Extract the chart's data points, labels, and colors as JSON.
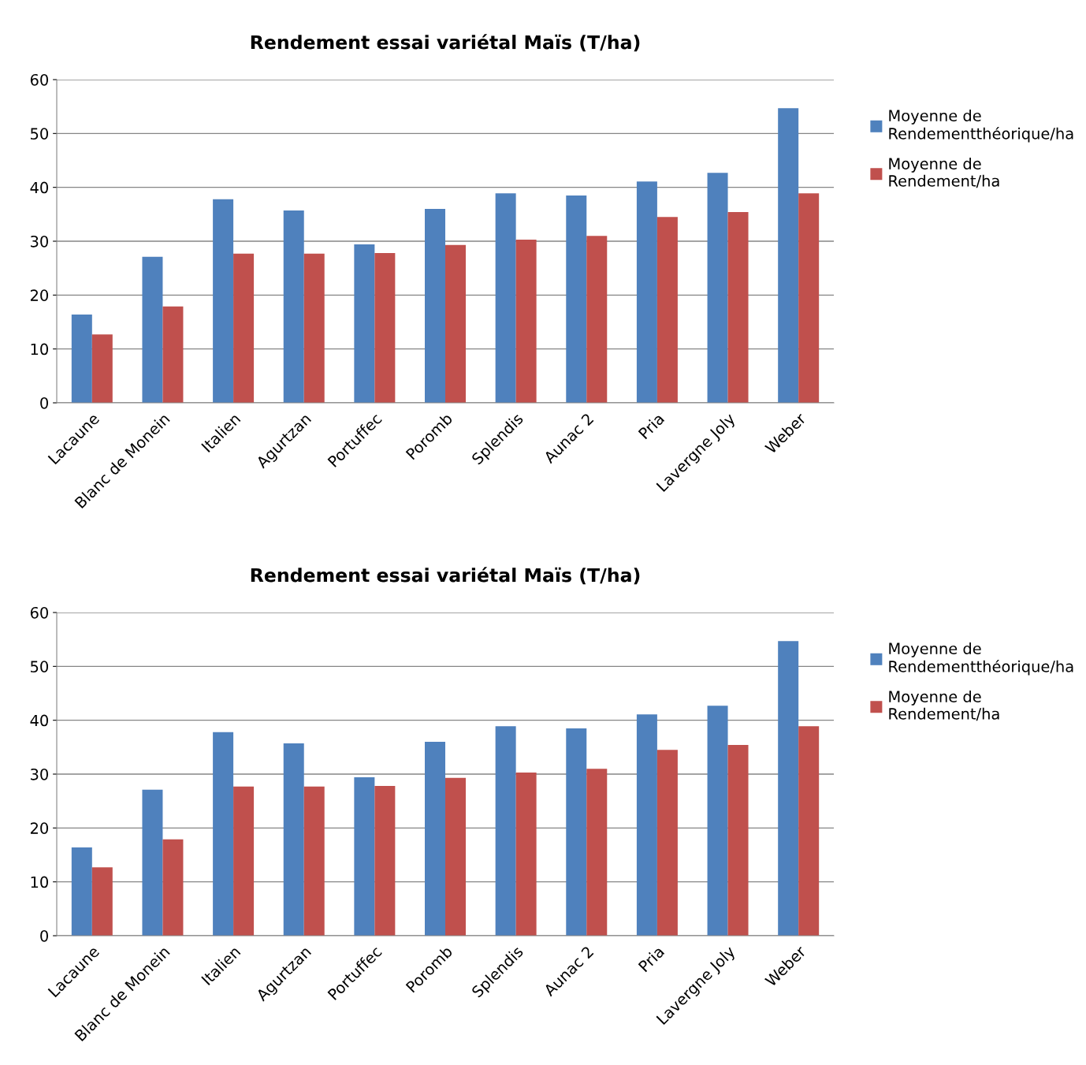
{
  "chart_data": [
    {
      "type": "bar",
      "title": "Rendement essai variétal Maïs (T/ha)",
      "categories": [
        "Lacaune",
        "Blanc de Monein",
        "Italien",
        "Agurtzan",
        "Portuffec",
        "Poromb",
        "Splendis",
        "Aunac 2",
        "Pria",
        "Lavergne Joly",
        "Weber"
      ],
      "series": [
        {
          "name": "Moyenne de\nRendementthéorique/ha",
          "color": "#4f81bd",
          "values": [
            16.4,
            27.1,
            37.8,
            35.7,
            29.4,
            36.0,
            38.9,
            38.5,
            41.1,
            42.7,
            54.7
          ]
        },
        {
          "name": "Moyenne de\nRendement/ha",
          "color": "#c0504d",
          "values": [
            12.7,
            17.9,
            27.7,
            27.7,
            27.8,
            29.3,
            30.3,
            31.0,
            34.5,
            35.4,
            38.9
          ]
        }
      ],
      "ylim": [
        0,
        60
      ],
      "yticks": [
        0,
        10,
        20,
        30,
        40,
        50,
        60
      ],
      "grid": "y",
      "legend": "right"
    },
    {
      "type": "bar",
      "title": "Rendement essai variétal Maïs (T/ha)",
      "categories": [
        "Lacaune",
        "Blanc de Monein",
        "Italien",
        "Agurtzan",
        "Portuffec",
        "Poromb",
        "Splendis",
        "Aunac 2",
        "Pria",
        "Lavergne Joly",
        "Weber"
      ],
      "series": [
        {
          "name": "Moyenne de\nRendementthéorique/ha",
          "color": "#4f81bd",
          "values": [
            16.4,
            27.1,
            37.8,
            35.7,
            29.4,
            36.0,
            38.9,
            38.5,
            41.1,
            42.7,
            54.7
          ]
        },
        {
          "name": "Moyenne de\nRendement/ha",
          "color": "#c0504d",
          "values": [
            12.7,
            17.9,
            27.7,
            27.7,
            27.8,
            29.3,
            30.3,
            31.0,
            34.5,
            35.4,
            38.9
          ]
        }
      ],
      "ylim": [
        0,
        60
      ],
      "yticks": [
        0,
        10,
        20,
        30,
        40,
        50,
        60
      ],
      "grid": "y",
      "legend": "right"
    }
  ]
}
